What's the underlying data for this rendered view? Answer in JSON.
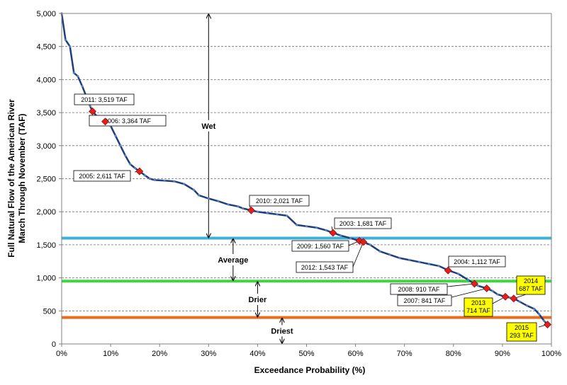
{
  "chart_data": {
    "type": "line",
    "title": "",
    "xlabel": "Exceedance Probability (%)",
    "ylabel_lines": [
      "Full Natural Flow of the American River",
      "March Through November (TAF)"
    ],
    "xlim": [
      0,
      100
    ],
    "ylim": [
      0,
      5000
    ],
    "x_ticks": [
      0,
      10,
      20,
      30,
      40,
      50,
      60,
      70,
      80,
      90,
      100
    ],
    "x_tick_labels": [
      "0%",
      "10%",
      "20%",
      "30%",
      "40%",
      "50%",
      "60%",
      "70%",
      "80%",
      "90%",
      "100%"
    ],
    "y_ticks": [
      0,
      500,
      1000,
      1500,
      2000,
      2500,
      3000,
      3500,
      4000,
      4500,
      5000
    ],
    "y_tick_labels": [
      "0",
      "500",
      "1,000",
      "1,500",
      "2,000",
      "2,500",
      "3,000",
      "3,500",
      "4,000",
      "4,500",
      "5,000"
    ],
    "grid": "horizontal dashed",
    "line_color": "#1f3f7a",
    "series": [
      {
        "x": [
          0,
          0.8,
          1.7,
          2.5,
          3.3,
          4.2,
          5.0,
          5.8,
          6.3,
          7.5,
          8.9,
          10.0,
          11.0,
          12.0,
          13.0,
          14.0,
          15.0,
          15.9,
          17.0,
          18.0,
          19.0,
          21.0,
          23.0,
          25.0,
          27.0,
          28.0,
          30.0,
          32.0,
          34.0,
          36.0,
          37.0,
          38.7,
          40.0,
          42.0,
          44.0,
          46.0,
          48.0,
          50.0,
          52.0,
          54.0,
          55.4,
          57.0,
          59.0,
          60.8,
          61.6,
          63.0,
          65.0,
          67.0,
          69.0,
          71.0,
          73.0,
          75.0,
          77.0,
          79.0,
          81.0,
          83.0,
          84.3,
          85.0,
          86.8,
          88.0,
          89.0,
          90.6,
          91.5,
          92.3,
          93.5,
          95.0,
          96.5,
          97.5,
          98.5,
          99.2
        ],
        "y": [
          5000,
          4600,
          4500,
          4100,
          4050,
          3900,
          3750,
          3600,
          3519,
          3420,
          3364,
          3300,
          3150,
          3000,
          2850,
          2720,
          2660,
          2611,
          2550,
          2500,
          2480,
          2470,
          2460,
          2420,
          2330,
          2250,
          2200,
          2160,
          2110,
          2080,
          2050,
          2021,
          2000,
          1980,
          1960,
          1940,
          1800,
          1780,
          1760,
          1720,
          1681,
          1640,
          1600,
          1560,
          1543,
          1500,
          1400,
          1350,
          1300,
          1270,
          1240,
          1210,
          1180,
          1112,
          1060,
          970,
          910,
          880,
          841,
          800,
          750,
          714,
          700,
          687,
          640,
          580,
          530,
          450,
          350,
          293
        ]
      }
    ],
    "highlight_points": [
      {
        "x": 6.3,
        "y": 3519,
        "label": "2011:  3,519 TAF",
        "highlight": false
      },
      {
        "x": 8.9,
        "y": 3364,
        "label": "2006:  3,364 TAF",
        "highlight": false
      },
      {
        "x": 15.9,
        "y": 2611,
        "label": "2005:  2,611 TAF",
        "highlight": false
      },
      {
        "x": 38.7,
        "y": 2021,
        "label": "2010:  2,021 TAF",
        "highlight": false
      },
      {
        "x": 55.4,
        "y": 1681,
        "label": "2003:  1,681 TAF",
        "highlight": false
      },
      {
        "x": 60.8,
        "y": 1560,
        "label": "2009:  1,560 TAF",
        "highlight": false
      },
      {
        "x": 61.6,
        "y": 1543,
        "label": "2012:  1,543 TAF",
        "highlight": false
      },
      {
        "x": 78.9,
        "y": 1112,
        "label": "2004:  1,112 TAF",
        "highlight": false
      },
      {
        "x": 84.3,
        "y": 910,
        "label": "2008:  910 TAF",
        "highlight": false
      },
      {
        "x": 86.8,
        "y": 841,
        "label": "2007:  841 TAF",
        "highlight": false
      },
      {
        "x": 92.3,
        "y": 687,
        "label_lines": [
          "2014",
          "687 TAF"
        ],
        "highlight": true
      },
      {
        "x": 90.6,
        "y": 714,
        "label_lines": [
          "2013",
          "714 TAF"
        ],
        "highlight": true
      },
      {
        "x": 99.2,
        "y": 293,
        "label_lines": [
          "2015",
          "293 TAF"
        ],
        "highlight": true
      }
    ],
    "thresholds": [
      {
        "y": 1600,
        "color": "#3fb0d8"
      },
      {
        "y": 950,
        "color": "#3ed63e"
      },
      {
        "y": 400,
        "color": "#e86e1c"
      }
    ],
    "zones": [
      {
        "label": "Wet",
        "arrow_x": 30,
        "from": 5000,
        "to": 1600
      },
      {
        "label": "Average",
        "arrow_x": 35,
        "from": 1600,
        "to": 950
      },
      {
        "label": "Drier",
        "arrow_x": 40,
        "from": 950,
        "to": 400
      },
      {
        "label": "Driest",
        "arrow_x": 45,
        "from": 400,
        "to": 0
      }
    ]
  }
}
